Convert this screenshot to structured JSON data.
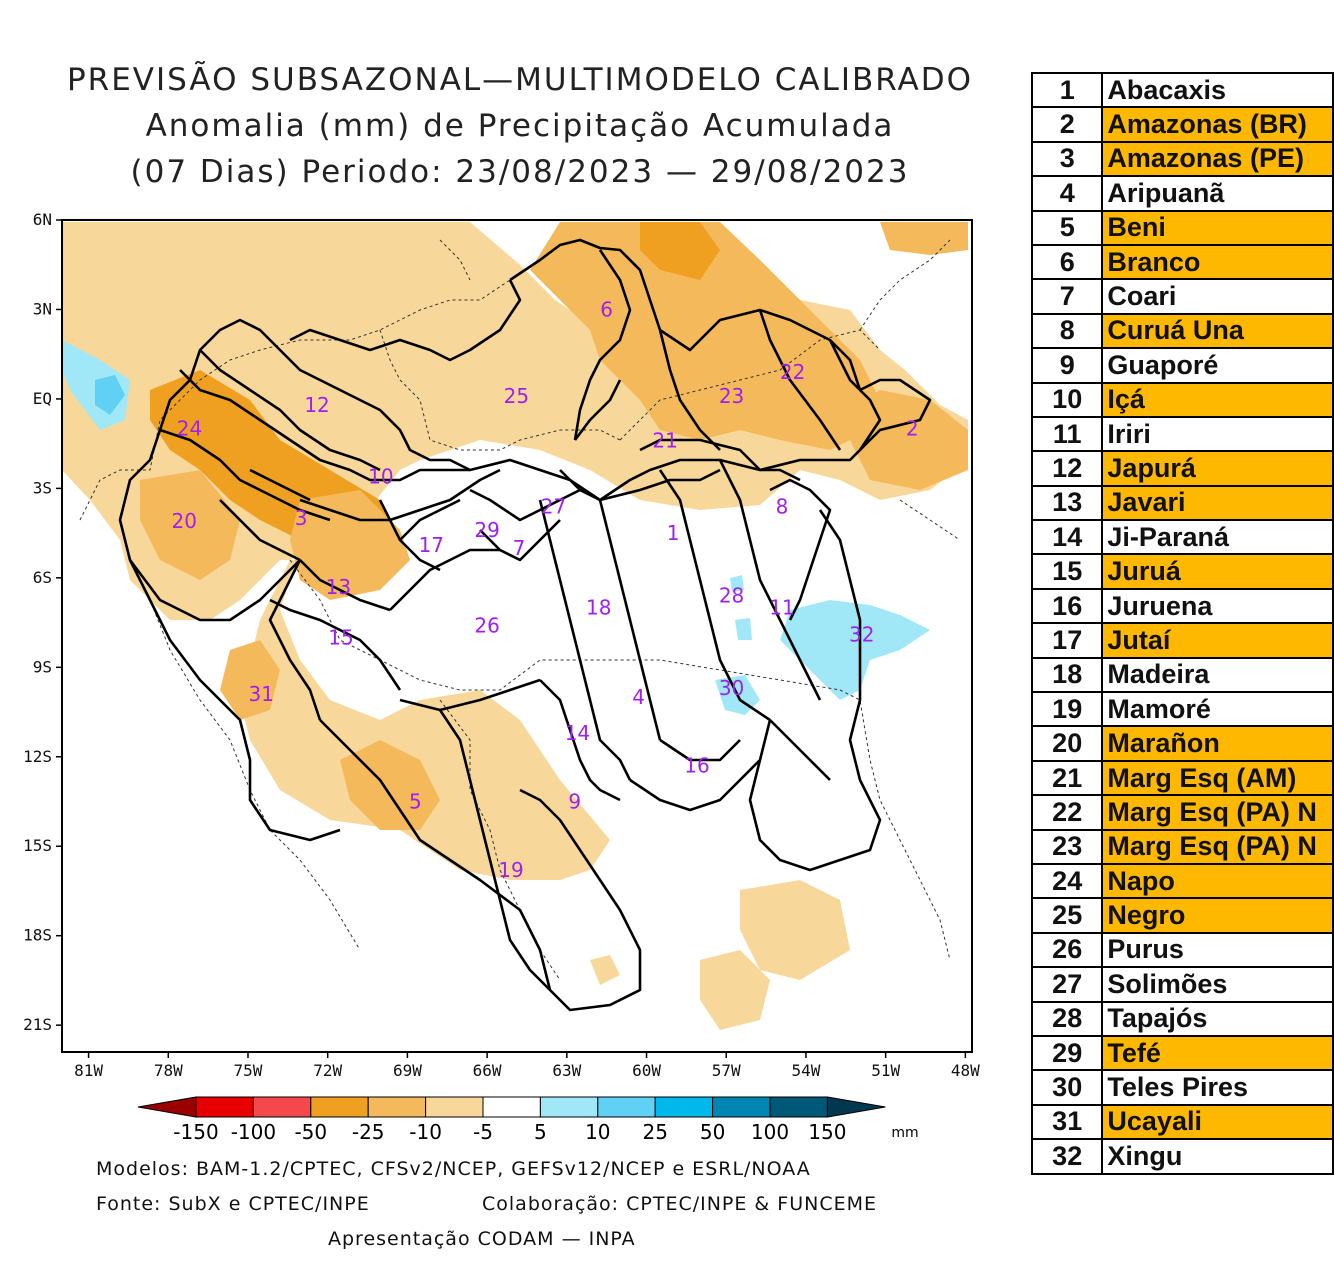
{
  "title": {
    "line1": "PREVISÃO SUBSAZONAL—MULTIMODELO CALIBRADO",
    "line2": "Anomalia (mm) de Precipitação Acumulada",
    "line3": "(07 Dias) Periodo: 23/08/2023 — 29/08/2023"
  },
  "map": {
    "lat_labels": [
      "6N",
      "3N",
      "EQ",
      "3S",
      "6S",
      "9S",
      "12S",
      "15S",
      "18S",
      "21S"
    ],
    "lon_labels": [
      "81W",
      "78W",
      "75W",
      "72W",
      "69W",
      "66W",
      "63W",
      "60W",
      "57W",
      "54W",
      "51W",
      "48W"
    ],
    "basin_labels": [
      {
        "n": "1",
        "lon": -59.0,
        "lat": -4.5
      },
      {
        "n": "2",
        "lon": -50.0,
        "lat": -1.0
      },
      {
        "n": "3",
        "lon": -73.0,
        "lat": -4.0
      },
      {
        "n": "4",
        "lon": -60.3,
        "lat": -10.0
      },
      {
        "n": "5",
        "lon": -68.7,
        "lat": -13.5
      },
      {
        "n": "6",
        "lon": -61.5,
        "lat": 3.0
      },
      {
        "n": "7",
        "lon": -64.8,
        "lat": -5.0
      },
      {
        "n": "8",
        "lon": -54.9,
        "lat": -3.6
      },
      {
        "n": "9",
        "lon": -62.7,
        "lat": -13.5
      },
      {
        "n": "10",
        "lon": -70.0,
        "lat": -2.6
      },
      {
        "n": "11",
        "lon": -54.9,
        "lat": -7.0
      },
      {
        "n": "12",
        "lon": -72.4,
        "lat": -0.2
      },
      {
        "n": "13",
        "lon": -71.6,
        "lat": -6.3
      },
      {
        "n": "14",
        "lon": -62.6,
        "lat": -11.2
      },
      {
        "n": "15",
        "lon": -71.5,
        "lat": -8.0
      },
      {
        "n": "16",
        "lon": -58.1,
        "lat": -12.3
      },
      {
        "n": "17",
        "lon": -68.1,
        "lat": -4.9
      },
      {
        "n": "18",
        "lon": -61.8,
        "lat": -7.0
      },
      {
        "n": "19",
        "lon": -65.1,
        "lat": -15.8
      },
      {
        "n": "20",
        "lon": -77.4,
        "lat": -4.1
      },
      {
        "n": "21",
        "lon": -59.3,
        "lat": -1.4
      },
      {
        "n": "22",
        "lon": -54.5,
        "lat": 0.9
      },
      {
        "n": "23",
        "lon": -56.8,
        "lat": 0.1
      },
      {
        "n": "24",
        "lon": -77.2,
        "lat": -1.0
      },
      {
        "n": "25",
        "lon": -64.9,
        "lat": 0.1
      },
      {
        "n": "26",
        "lon": -66.0,
        "lat": -7.6
      },
      {
        "n": "27",
        "lon": -63.5,
        "lat": -3.6
      },
      {
        "n": "28",
        "lon": -56.8,
        "lat": -6.6
      },
      {
        "n": "29",
        "lon": -66.0,
        "lat": -4.4
      },
      {
        "n": "30",
        "lon": -56.8,
        "lat": -9.7
      },
      {
        "n": "31",
        "lon": -74.5,
        "lat": -9.9
      },
      {
        "n": "32",
        "lon": -51.9,
        "lat": -7.9
      }
    ]
  },
  "colorbar": {
    "labels": [
      "-150",
      "-100",
      "-50",
      "-25",
      "-10",
      "-5",
      "5",
      "10",
      "25",
      "50",
      "100",
      "150"
    ],
    "unit": "mm",
    "colors": [
      "#9b0000",
      "#e80000",
      "#f5484d",
      "#f0a020",
      "#f4b95a",
      "#f8d89a",
      "#ffffff",
      "#a0e8f8",
      "#60d0f4",
      "#00b8ec",
      "#0086b0",
      "#005878",
      "#003850"
    ]
  },
  "footer": {
    "models": "Modelos: BAM-1.2/CPTEC, CFSv2/NCEP, GEFSv12/NCEP e ESRL/NOAA",
    "source": "Fonte: SubX e CPTEC/INPE",
    "collab": "Colaboração: CPTEC/INPE & FUNCEME",
    "presentation": "Apresentação CODAM — INPA"
  },
  "basins": [
    {
      "num": "1",
      "name": "Abacaxis",
      "hl": false
    },
    {
      "num": "2",
      "name": "Amazonas (BR)",
      "hl": true
    },
    {
      "num": "3",
      "name": "Amazonas (PE)",
      "hl": true
    },
    {
      "num": "4",
      "name": "Aripuanã",
      "hl": false
    },
    {
      "num": "5",
      "name": "Beni",
      "hl": true
    },
    {
      "num": "6",
      "name": "Branco",
      "hl": true
    },
    {
      "num": "7",
      "name": "Coari",
      "hl": false
    },
    {
      "num": "8",
      "name": "Curuá Una",
      "hl": true
    },
    {
      "num": "9",
      "name": "Guaporé",
      "hl": false
    },
    {
      "num": "10",
      "name": "Içá",
      "hl": true
    },
    {
      "num": "11",
      "name": "Iriri",
      "hl": false
    },
    {
      "num": "12",
      "name": "Japurá",
      "hl": true
    },
    {
      "num": "13",
      "name": "Javari",
      "hl": true
    },
    {
      "num": "14",
      "name": "Ji-Paraná",
      "hl": false
    },
    {
      "num": "15",
      "name": "Juruá",
      "hl": true
    },
    {
      "num": "16",
      "name": "Juruena",
      "hl": false
    },
    {
      "num": "17",
      "name": "Jutaí",
      "hl": true
    },
    {
      "num": "18",
      "name": "Madeira",
      "hl": false
    },
    {
      "num": "19",
      "name": "Mamoré",
      "hl": false
    },
    {
      "num": "20",
      "name": "Marañon",
      "hl": true
    },
    {
      "num": "21",
      "name": "Marg Esq (AM)",
      "hl": true
    },
    {
      "num": "22",
      "name": "Marg Esq (PA) N",
      "hl": true
    },
    {
      "num": "23",
      "name": "Marg Esq (PA) N",
      "hl": true
    },
    {
      "num": "24",
      "name": "Napo",
      "hl": true
    },
    {
      "num": "25",
      "name": "Negro",
      "hl": true
    },
    {
      "num": "26",
      "name": "Purus",
      "hl": false
    },
    {
      "num": "27",
      "name": "Solimões",
      "hl": false
    },
    {
      "num": "28",
      "name": "Tapajós",
      "hl": false
    },
    {
      "num": "29",
      "name": "Tefé",
      "hl": true
    },
    {
      "num": "30",
      "name": "Teles Pires",
      "hl": false
    },
    {
      "num": "31",
      "name": "Ucayali",
      "hl": true
    },
    {
      "num": "32",
      "name": "Xingu",
      "hl": false
    }
  ]
}
